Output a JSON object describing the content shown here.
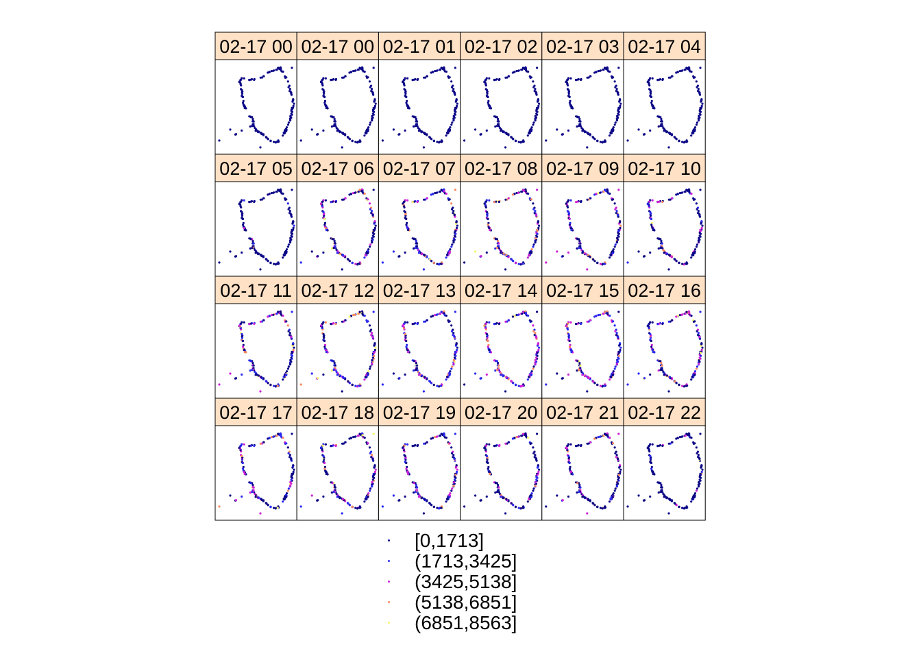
{
  "chart_data": {
    "type": "scatter",
    "layout": "small-multiples grid, 6 columns x 4 rows",
    "strip_color": "#ffe1c6",
    "panels": [
      "02-17 00",
      "02-17 00",
      "02-17 01",
      "02-17 02",
      "02-17 03",
      "02-17 04",
      "02-17 05",
      "02-17 06",
      "02-17 07",
      "02-17 08",
      "02-17 09",
      "02-17 10",
      "02-17 11",
      "02-17 12",
      "02-17 13",
      "02-17 14",
      "02-17 15",
      "02-17 16",
      "02-17 17",
      "02-17 18",
      "02-17 19",
      "02-17 20",
      "02-17 21",
      "02-17 22"
    ],
    "legend": {
      "position": "bottom",
      "items": [
        {
          "label": "[0,1713]",
          "color": "#0d0887"
        },
        {
          "label": "(1713,3425]",
          "color": "#2a2af0"
        },
        {
          "label": "(3425,5138]",
          "color": "#cc22d6"
        },
        {
          "label": "(5138,6851]",
          "color": "#f78a5e"
        },
        {
          "label": "(6851,8563]",
          "color": "#f5f56a"
        }
      ]
    },
    "activity_by_panel": [
      0,
      0,
      0,
      0,
      0,
      0,
      0.05,
      0.45,
      0.55,
      0.55,
      0.5,
      0.35,
      0.55,
      0.6,
      0.7,
      0.7,
      0.6,
      0.55,
      0.55,
      0.5,
      0.45,
      0.4,
      0.25,
      0.12
    ]
  }
}
